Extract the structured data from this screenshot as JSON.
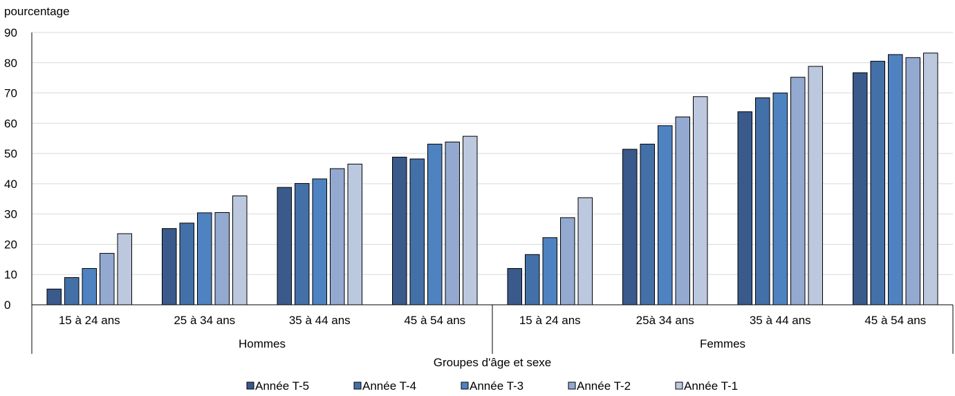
{
  "chart_data": {
    "type": "bar",
    "ylabel": "pourcentage",
    "xlabel": "Groupes d'âge et sexe",
    "ylim": [
      0,
      90
    ],
    "yticks": [
      0,
      10,
      20,
      30,
      40,
      50,
      60,
      70,
      80,
      90
    ],
    "grid": true,
    "legend_position": "bottom",
    "groups": [
      "Hommes",
      "Femmes"
    ],
    "categories": [
      "15 à 24 ans",
      "25 à 34 ans",
      "35 à 44 ans",
      "45 à 54 ans",
      "15 à 24 ans",
      "25à 34 ans",
      "35 à 44 ans",
      "45 à 54 ans"
    ],
    "series": [
      {
        "name": "Année T-5",
        "color": "#3a5a8c",
        "values": [
          5.2,
          25.2,
          38.8,
          48.8,
          12.0,
          51.4,
          63.8,
          76.7
        ]
      },
      {
        "name": "Année T-4",
        "color": "#4470a8",
        "values": [
          9.0,
          27.0,
          40.1,
          48.2,
          16.6,
          53.1,
          68.4,
          80.5
        ]
      },
      {
        "name": "Année T-3",
        "color": "#4f82c0",
        "values": [
          12.0,
          30.4,
          41.6,
          53.1,
          22.2,
          59.2,
          70.0,
          82.7
        ]
      },
      {
        "name": "Année T-2",
        "color": "#93a9cf",
        "values": [
          17.0,
          30.5,
          45.0,
          53.8,
          28.8,
          62.1,
          75.2,
          81.7
        ]
      },
      {
        "name": "Année T-1",
        "color": "#bcc8de",
        "values": [
          23.5,
          36.0,
          46.5,
          55.7,
          35.4,
          68.8,
          78.8,
          83.2
        ]
      }
    ]
  }
}
